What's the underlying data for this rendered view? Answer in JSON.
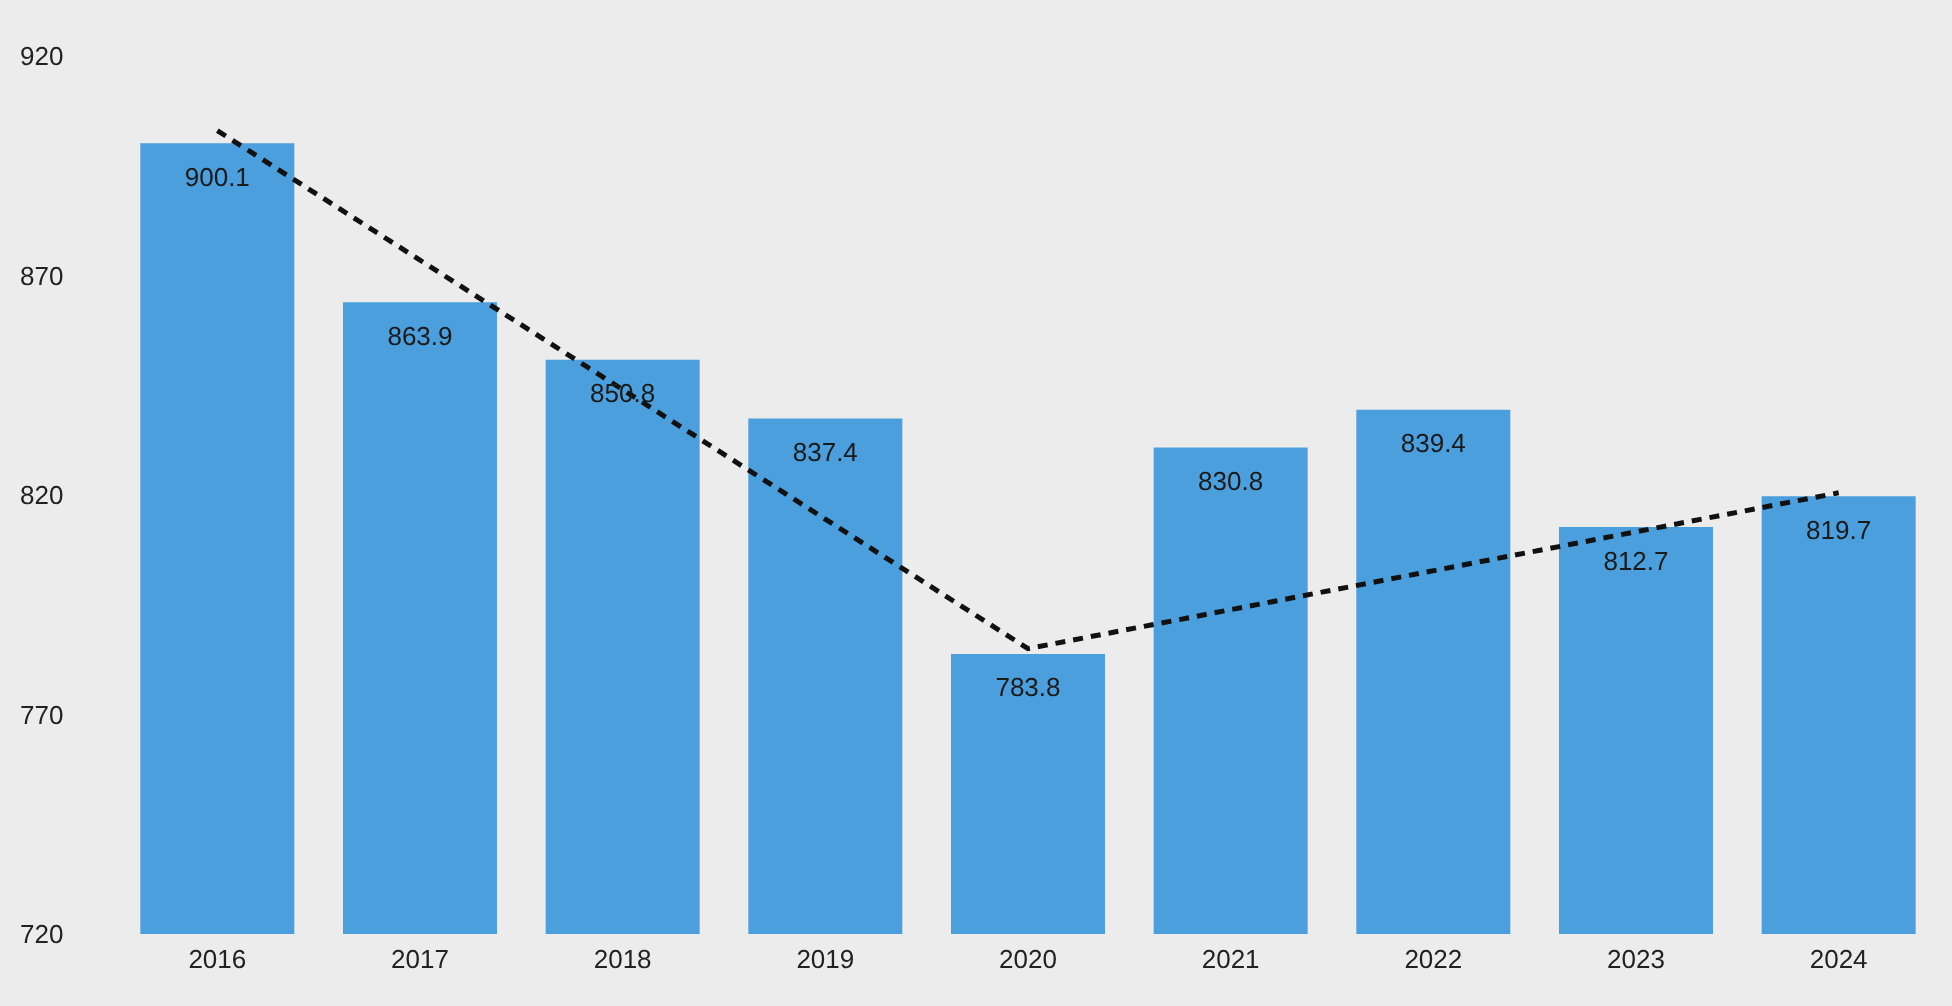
{
  "chart_data": {
    "type": "bar",
    "categories": [
      "2016",
      "2017",
      "2018",
      "2019",
      "2020",
      "2021",
      "2022",
      "2023",
      "2024"
    ],
    "series": [
      {
        "color": "#4a9fdc",
        "values": [
          900.1,
          863.9,
          850.8,
          837.4,
          783.8,
          830.8,
          839.4,
          812.7,
          819.7
        ],
        "data_labels": true
      },
      {
        "type": "line",
        "color": "#111111",
        "values": [
          903,
          null,
          null,
          null,
          785,
          null,
          null,
          null,
          820.5
        ],
        "line_style": "dashed",
        "marker": "none"
      }
    ],
    "ylim": [
      720,
      920
    ],
    "yticks": [
      720,
      770,
      820,
      870,
      920
    ],
    "grid": false,
    "legend": false
  }
}
